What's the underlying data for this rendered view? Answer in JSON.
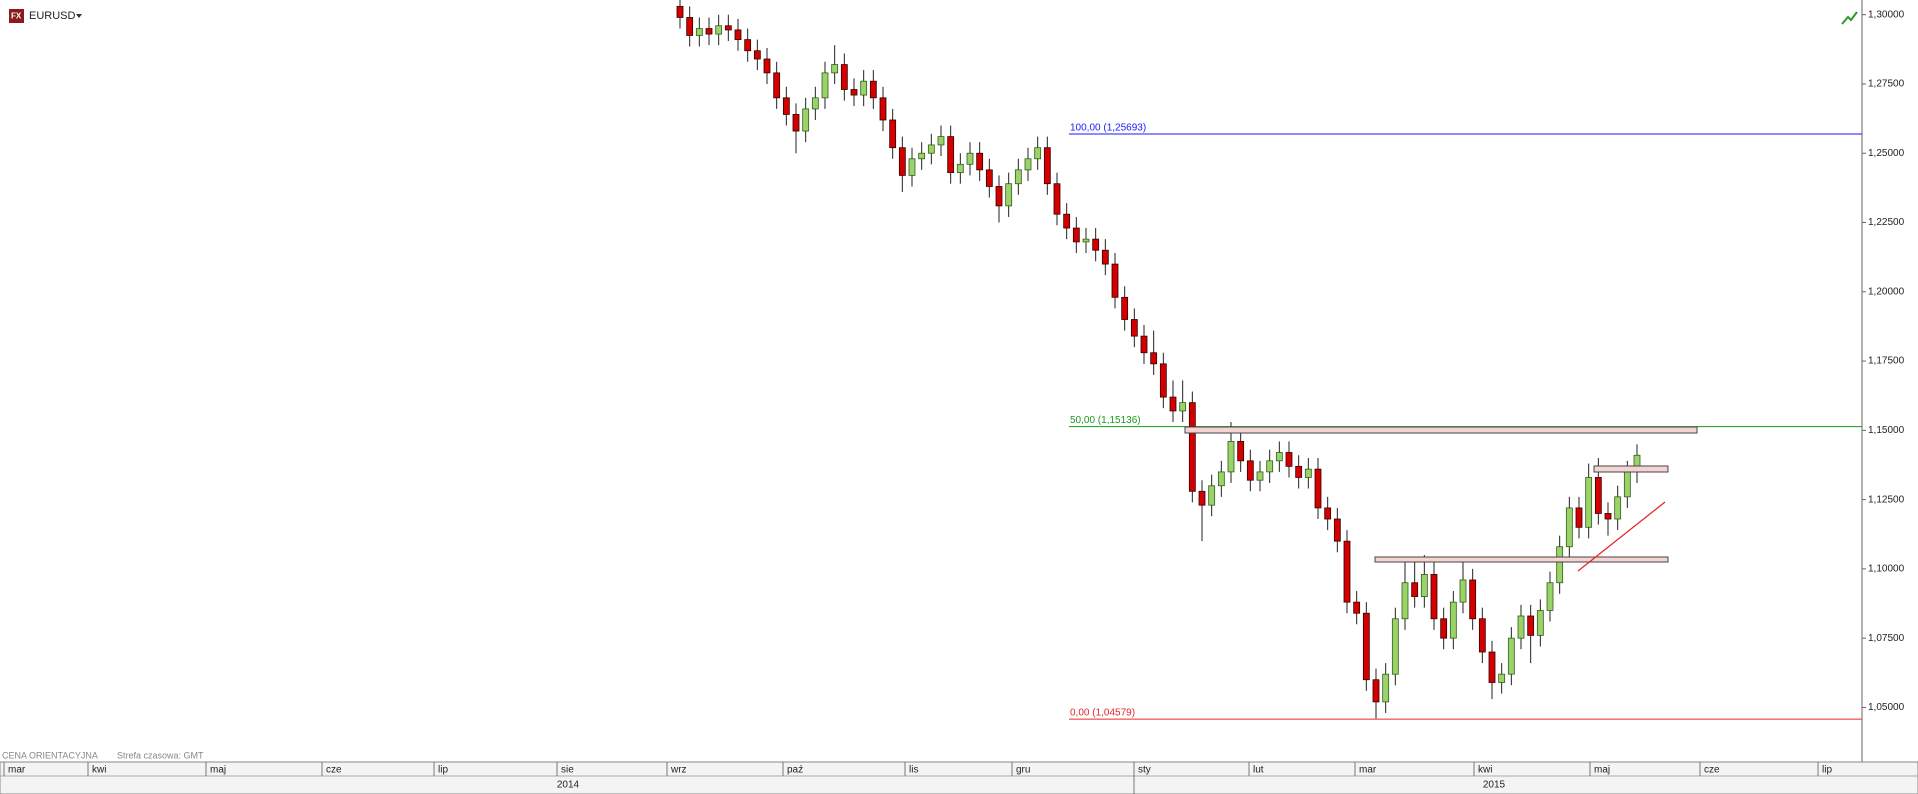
{
  "chart_data": {
    "type": "candlestick",
    "title": "EURUSD",
    "note": "CENA ORIENTACYJNA",
    "timezone": "Strefa czasowa: GMT",
    "months": [
      "mar",
      "kwi",
      "maj",
      "cze",
      "lip",
      "sie",
      "wrz",
      "paź",
      "lis",
      "gru",
      "sty",
      "lut",
      "mar",
      "kwi",
      "maj",
      "cze",
      "lip"
    ],
    "years": [
      "2014",
      "2015"
    ],
    "ylim": [
      1.035,
      1.3053
    ],
    "yticks": [
      {
        "value": 1.3,
        "label": "1,30000"
      },
      {
        "value": 1.275,
        "label": "1,27500"
      },
      {
        "value": 1.25,
        "label": "1,25000"
      },
      {
        "value": 1.225,
        "label": "1,22500"
      },
      {
        "value": 1.2,
        "label": "1,20000"
      },
      {
        "value": 1.175,
        "label": "1,17500"
      },
      {
        "value": 1.15,
        "label": "1,15000"
      },
      {
        "value": 1.125,
        "label": "1,12500"
      },
      {
        "value": 1.1,
        "label": "1,10000"
      },
      {
        "value": 1.075,
        "label": "1,07500"
      },
      {
        "value": 1.05,
        "label": "1,05000"
      }
    ],
    "fib_levels": [
      {
        "label": "100,00 (1,25693)",
        "value": 1.25693,
        "color": "#1a1aff"
      },
      {
        "label": "50,00 (1,15136)",
        "value": 1.15136,
        "color": "#1a9a1a"
      },
      {
        "label": "0,00 (1,04579)",
        "value": 1.04579,
        "color": "#e8262a"
      }
    ],
    "up_color": "#9bd26a",
    "down_color": "#d40000",
    "open": [
      1.303,
      1.299,
      1.2925,
      1.295,
      1.293,
      1.296,
      1.2945,
      1.291,
      1.287,
      1.284,
      1.279,
      1.27,
      1.264,
      1.258,
      1.266,
      1.27,
      1.279,
      1.282,
      1.273,
      1.271,
      1.276,
      1.27,
      1.262,
      1.252,
      1.242,
      1.248,
      1.25,
      1.253,
      1.256,
      1.243,
      1.246,
      1.25,
      1.244,
      1.238,
      1.231,
      1.239,
      1.244,
      1.248,
      1.252,
      1.239,
      1.228,
      1.223,
      1.218,
      1.219,
      1.215,
      1.21,
      1.198,
      1.19,
      1.184,
      1.178,
      1.174,
      1.162,
      1.157,
      1.16,
      1.128,
      1.123,
      1.13,
      1.135,
      1.146,
      1.139,
      1.132,
      1.135,
      1.139,
      1.142,
      1.137,
      1.133,
      1.136,
      1.122,
      1.118,
      1.11,
      1.088,
      1.084,
      1.06,
      1.052,
      1.062,
      1.082,
      1.095,
      1.09,
      1.098,
      1.082,
      1.075,
      1.088,
      1.096,
      1.082,
      1.07,
      1.059,
      1.062,
      1.075,
      1.083,
      1.076,
      1.085,
      1.095,
      1.108,
      1.122,
      1.115,
      1.133,
      1.12,
      1.118,
      1.126,
      1.135
    ],
    "high": [
      1.307,
      1.303,
      1.299,
      1.299,
      1.3,
      1.3,
      1.2985,
      1.295,
      1.291,
      1.288,
      1.283,
      1.274,
      1.268,
      1.27,
      1.274,
      1.283,
      1.289,
      1.286,
      1.277,
      1.28,
      1.28,
      1.274,
      1.266,
      1.256,
      1.252,
      1.254,
      1.257,
      1.26,
      1.26,
      1.25,
      1.254,
      1.254,
      1.248,
      1.242,
      1.243,
      1.248,
      1.252,
      1.256,
      1.256,
      1.243,
      1.232,
      1.227,
      1.223,
      1.223,
      1.219,
      1.214,
      1.202,
      1.194,
      1.188,
      1.186,
      1.178,
      1.168,
      1.168,
      1.164,
      1.132,
      1.134,
      1.139,
      1.153,
      1.15,
      1.143,
      1.139,
      1.143,
      1.146,
      1.146,
      1.141,
      1.14,
      1.14,
      1.126,
      1.122,
      1.114,
      1.092,
      1.088,
      1.064,
      1.066,
      1.086,
      1.104,
      1.103,
      1.105,
      1.103,
      1.086,
      1.092,
      1.103,
      1.1,
      1.086,
      1.074,
      1.066,
      1.079,
      1.087,
      1.087,
      1.089,
      1.099,
      1.112,
      1.126,
      1.126,
      1.138,
      1.14,
      1.124,
      1.13,
      1.139,
      1.145
    ],
    "low": [
      1.295,
      1.2885,
      1.2885,
      1.289,
      1.289,
      1.2905,
      1.287,
      1.283,
      1.28,
      1.275,
      1.266,
      1.26,
      1.25,
      1.254,
      1.262,
      1.266,
      1.275,
      1.269,
      1.267,
      1.267,
      1.266,
      1.258,
      1.248,
      1.236,
      1.238,
      1.244,
      1.246,
      1.249,
      1.239,
      1.239,
      1.242,
      1.24,
      1.234,
      1.225,
      1.227,
      1.235,
      1.24,
      1.244,
      1.235,
      1.224,
      1.219,
      1.214,
      1.214,
      1.211,
      1.206,
      1.194,
      1.186,
      1.18,
      1.174,
      1.17,
      1.158,
      1.153,
      1.153,
      1.124,
      1.11,
      1.119,
      1.126,
      1.131,
      1.135,
      1.128,
      1.128,
      1.131,
      1.135,
      1.133,
      1.129,
      1.129,
      1.118,
      1.114,
      1.106,
      1.084,
      1.08,
      1.056,
      1.046,
      1.048,
      1.058,
      1.078,
      1.086,
      1.086,
      1.078,
      1.071,
      1.071,
      1.084,
      1.078,
      1.066,
      1.053,
      1.055,
      1.058,
      1.071,
      1.066,
      1.072,
      1.081,
      1.091,
      1.104,
      1.111,
      1.111,
      1.116,
      1.112,
      1.114,
      1.122,
      1.131
    ],
    "close": [
      1.299,
      1.2925,
      1.295,
      1.293,
      1.296,
      1.2945,
      1.291,
      1.287,
      1.284,
      1.279,
      1.27,
      1.264,
      1.258,
      1.266,
      1.27,
      1.279,
      1.282,
      1.273,
      1.271,
      1.276,
      1.27,
      1.262,
      1.252,
      1.242,
      1.248,
      1.25,
      1.253,
      1.256,
      1.243,
      1.246,
      1.25,
      1.244,
      1.238,
      1.231,
      1.239,
      1.244,
      1.248,
      1.252,
      1.239,
      1.228,
      1.223,
      1.218,
      1.219,
      1.215,
      1.21,
      1.198,
      1.19,
      1.184,
      1.178,
      1.174,
      1.162,
      1.157,
      1.16,
      1.128,
      1.123,
      1.13,
      1.135,
      1.146,
      1.139,
      1.132,
      1.135,
      1.139,
      1.142,
      1.137,
      1.133,
      1.136,
      1.122,
      1.118,
      1.11,
      1.088,
      1.084,
      1.06,
      1.052,
      1.062,
      1.082,
      1.095,
      1.09,
      1.098,
      1.082,
      1.075,
      1.088,
      1.096,
      1.082,
      1.07,
      1.059,
      1.062,
      1.075,
      1.083,
      1.076,
      1.085,
      1.095,
      1.108,
      1.122,
      1.115,
      1.133,
      1.12,
      1.118,
      1.126,
      1.135,
      1.141
    ]
  }
}
